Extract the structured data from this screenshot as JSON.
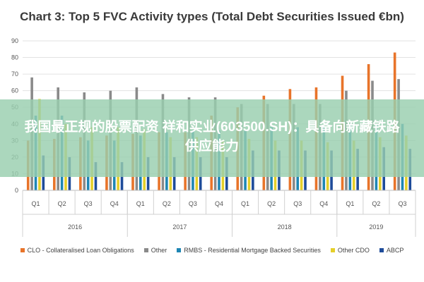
{
  "chart_data": {
    "type": "bar",
    "title": "Chart 3: Top 5 FVC Activity types (Total Debt Securities Issued €bn)",
    "xlabel": "",
    "ylabel": "",
    "ylim": [
      0,
      90
    ],
    "yticks": [
      0,
      10,
      20,
      30,
      40,
      50,
      60,
      70,
      80,
      90
    ],
    "grid": true,
    "legend_position": "bottom",
    "categories": [
      "Q1",
      "Q2",
      "Q3",
      "Q4",
      "Q1",
      "Q2",
      "Q3",
      "Q4",
      "Q1",
      "Q2",
      "Q3",
      "Q4",
      "Q1",
      "Q2",
      "Q3"
    ],
    "years": [
      {
        "label": "2016",
        "quarters": 4
      },
      {
        "label": "2017",
        "quarters": 4
      },
      {
        "label": "2018",
        "quarters": 4
      },
      {
        "label": "2019",
        "quarters": 3
      }
    ],
    "series": [
      {
        "name": "CLO - Collateralised Loan Obligations",
        "color": "#e8742a",
        "values": [
          30,
          31,
          32,
          33,
          34,
          35,
          35,
          45,
          50,
          57,
          61,
          62,
          69,
          76,
          83
        ]
      },
      {
        "name": "Other",
        "color": "#8a8a8a",
        "values": [
          68,
          62,
          59,
          60,
          62,
          58,
          56,
          56,
          52,
          52,
          52,
          52,
          60,
          66,
          67
        ]
      },
      {
        "name": "RMBS - Residential Mortgage Backed Securities",
        "color": "#1e86b4",
        "values": [
          45,
          45,
          30,
          30,
          33,
          35,
          36,
          36,
          36,
          38,
          38,
          38,
          40,
          40,
          40
        ]
      },
      {
        "name": "Other CDO",
        "color": "#e5cf2a",
        "values": [
          55,
          40,
          38,
          38,
          37,
          32,
          32,
          30,
          31,
          30,
          30,
          29,
          30,
          32,
          33
        ]
      },
      {
        "name": "ABCP",
        "color": "#1f4c9a",
        "values": [
          21,
          20,
          17,
          17,
          20,
          20,
          20,
          20,
          24,
          24,
          24,
          24,
          25,
          26,
          25
        ]
      }
    ]
  },
  "overlay": {
    "text": "我国最正规的股票配资 祥和实业(603500.SH)：具备向新藏铁路供应能力"
  }
}
